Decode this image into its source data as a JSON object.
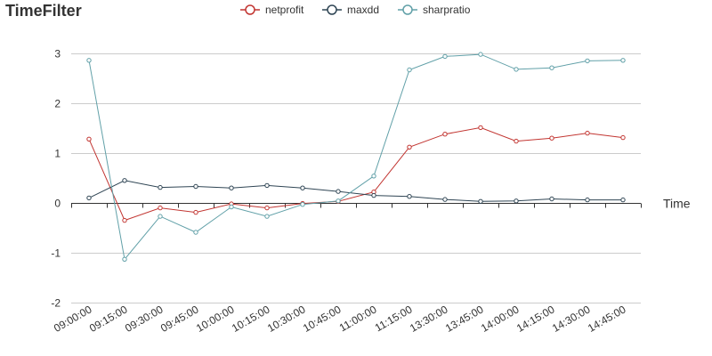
{
  "chart_data": {
    "type": "line",
    "title": "TimeFilter",
    "xlabel": "Time",
    "ylabel": "",
    "ylim": [
      -2,
      3
    ],
    "yticks": [
      -2,
      -1,
      0,
      1,
      2,
      3
    ],
    "grid": true,
    "legend_position": "top-center",
    "x": [
      "09:00:00",
      "09:15:00",
      "09:30:00",
      "09:45:00",
      "10:00:00",
      "10:15:00",
      "10:30:00",
      "10:45:00",
      "11:00:00",
      "11:15:00",
      "13:30:00",
      "13:45:00",
      "14:00:00",
      "14:15:00",
      "14:30:00",
      "14:45:00"
    ],
    "series": [
      {
        "name": "netprofit",
        "color": "#c23531",
        "values": [
          1.28,
          -0.35,
          -0.1,
          -0.19,
          -0.02,
          -0.1,
          -0.01,
          0.03,
          0.22,
          1.12,
          1.38,
          1.51,
          1.24,
          1.3,
          1.4,
          1.31
        ]
      },
      {
        "name": "maxdd",
        "color": "#2f4554",
        "values": [
          0.1,
          0.45,
          0.31,
          0.33,
          0.3,
          0.35,
          0.3,
          0.23,
          0.15,
          0.13,
          0.07,
          0.03,
          0.04,
          0.08,
          0.06,
          0.06
        ]
      },
      {
        "name": "sharpratio",
        "color": "#61a0a8",
        "values": [
          2.86,
          -1.13,
          -0.27,
          -0.59,
          -0.08,
          -0.27,
          -0.03,
          0.04,
          0.54,
          2.67,
          2.94,
          2.98,
          2.68,
          2.71,
          2.85,
          2.86
        ]
      }
    ]
  }
}
